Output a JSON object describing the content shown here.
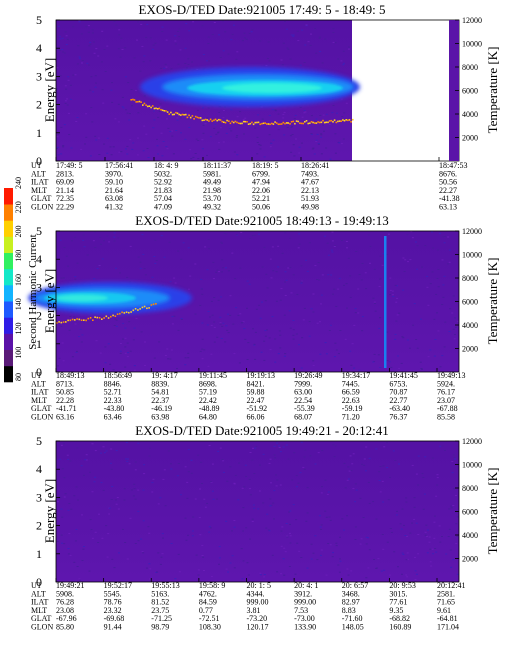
{
  "colorbar": {
    "label": "Second Harmonic Current",
    "ticks": [
      "80",
      "100",
      "120",
      "140",
      "160",
      "180",
      "200",
      "220",
      "240"
    ],
    "colors": [
      "#000000",
      "#5a1a78",
      "#5b12a8",
      "#2f1ce6",
      "#1e5aff",
      "#12b4ff",
      "#14e8c8",
      "#30f060",
      "#c8f020",
      "#ffd000",
      "#ff8000",
      "#ff1a00"
    ]
  },
  "panels": [
    {
      "title": "EXOS-D/TED   Date:921005  17:49: 5 - 18:49: 5",
      "ylabel": "Energy [eV]",
      "y2label": "Temperature [K]",
      "yticks": [
        "0",
        "1",
        "2",
        "3",
        "4",
        "5"
      ],
      "y2ticks": [
        "2000",
        "4000",
        "6000",
        "8000",
        "10000",
        "12000"
      ],
      "row_labels": [
        "UT",
        "ALT",
        "ILAT",
        "MLT",
        "GLAT",
        "GLON"
      ],
      "columns": [
        [
          "17:49: 5",
          "2813.",
          "69.09",
          "21.14",
          "72.35",
          "22.29"
        ],
        [
          "17:56:41",
          "3970.",
          "59.10",
          "21.64",
          "63.08",
          "41.32"
        ],
        [
          "18: 4: 9",
          "5032.",
          "52.92",
          "21.83",
          "57.04",
          "47.09"
        ],
        [
          "18:11:37",
          "5981.",
          "49.49",
          "21.98",
          "53.70",
          "49.32"
        ],
        [
          "18:19: 5",
          "6799.",
          "47.94",
          "22.06",
          "52.21",
          "50.06"
        ],
        [
          "18:26:41",
          "7493.",
          "47.67",
          "22.13",
          "51.93",
          "49.98"
        ],
        [
          "18:47:53",
          "8676.",
          "50.56",
          "22.27",
          "-41.38",
          "63.13"
        ]
      ]
    },
    {
      "title": "EXOS-D/TED   Date:921005  18:49:13 - 19:49:13",
      "ylabel": "Energy [eV]",
      "y2label": "Temperature [K]",
      "yticks": [
        "0",
        "1",
        "2",
        "3",
        "4",
        "5"
      ],
      "y2ticks": [
        "2000",
        "4000",
        "6000",
        "8000",
        "10000",
        "12000"
      ],
      "row_labels": [
        "UT",
        "ALT",
        "ILAT",
        "MLT",
        "GLAT",
        "GLON"
      ],
      "columns": [
        [
          "18:49:13",
          "8713.",
          "50.85",
          "22.28",
          "-41.71",
          "63.16"
        ],
        [
          "18:56:49",
          "8846.",
          "52.71",
          "22.33",
          "-43.80",
          "63.46"
        ],
        [
          "19: 4:17",
          "8839.",
          "54.81",
          "22.37",
          "-46.19",
          "63.98"
        ],
        [
          "19:11:45",
          "8698.",
          "57.19",
          "22.42",
          "-48.89",
          "64.80"
        ],
        [
          "19:19:13",
          "8421.",
          "59.88",
          "22.47",
          "-51.92",
          "66.06"
        ],
        [
          "19:26:49",
          "7999.",
          "63.00",
          "22.54",
          "-55.39",
          "68.07"
        ],
        [
          "19:34:17",
          "7445.",
          "66.59",
          "22.63",
          "-59.19",
          "71.20"
        ],
        [
          "19:41:45",
          "6753.",
          "70.87",
          "22.77",
          "-63.40",
          "76.37"
        ],
        [
          "19:49:13",
          "5924.",
          "76.17",
          "23.07",
          "-67.88",
          "85.58"
        ]
      ]
    },
    {
      "title": "EXOS-D/TED   Date:921005  19:49:21 - 20:12:41",
      "ylabel": "Energy [eV]",
      "y2label": "Temperature [K]",
      "yticks": [
        "0",
        "1",
        "2",
        "3",
        "4",
        "5"
      ],
      "y2ticks": [
        "2000",
        "4000",
        "6000",
        "8000",
        "10000",
        "12000"
      ],
      "row_labels": [
        "UT",
        "ALT",
        "ILAT",
        "MLT",
        "GLAT",
        "GLON"
      ],
      "columns": [
        [
          "19:49:21",
          "5908.",
          "76.28",
          "23.08",
          "-67.96",
          "85.80"
        ],
        [
          "19:52:17",
          "5545.",
          "78.76",
          "23.32",
          "-69.68",
          "91.44"
        ],
        [
          "19:55:13",
          "5163.",
          "81.52",
          "23.75",
          "-71.25",
          "98.79"
        ],
        [
          "19:58: 9",
          "4762.",
          "84.59",
          "0.77",
          "-72.51",
          "108.30"
        ],
        [
          "20: 1: 5",
          "4344.",
          "999.00",
          "3.81",
          "-73.20",
          "120.17"
        ],
        [
          "20: 4: 1",
          "3912.",
          "999.00",
          "7.53",
          "-73.00",
          "133.90"
        ],
        [
          "20: 6:57",
          "3468.",
          "82.97",
          "8.83",
          "-71.60",
          "148.05"
        ],
        [
          "20: 9:53",
          "3015.",
          "77.61",
          "9.35",
          "-68.82",
          "160.89"
        ],
        [
          "20:12:41",
          "2581.",
          "71.65",
          "9.61",
          "-64.81",
          "171.04"
        ]
      ]
    }
  ],
  "chart_data": [
    {
      "type": "heatmap",
      "title": "EXOS-D/TED   Date:921005  17:49: 5 - 18:49: 5",
      "xlabel": "UT",
      "ylabel": "Energy [eV]",
      "y2label": "Temperature [K]",
      "ylim": [
        0,
        5
      ],
      "y2lim": [
        0,
        12000
      ],
      "x_ticks": [
        "17:49: 5",
        "17:56:41",
        "18: 4: 9",
        "18:11:37",
        "18:19: 5",
        "18:26:41",
        "18:47:53"
      ],
      "data_end": "18:34:00",
      "band_center_eV": [
        null,
        null,
        null,
        2.78,
        2.62,
        2.58,
        2.58,
        2.58,
        2.58
      ],
      "band_halfwidth_eV": [
        null,
        null,
        null,
        0.55,
        0.5,
        0.45,
        0.42,
        0.42,
        0.4
      ],
      "temperature_K": [
        null,
        null,
        5300,
        4200,
        3600,
        3300,
        3300,
        3400,
        3500
      ],
      "colorbar_range": [
        80,
        240
      ],
      "colorbar_label": "Second Harmonic Current"
    },
    {
      "type": "heatmap",
      "title": "EXOS-D/TED   Date:921005  18:49:13 - 19:49:13",
      "xlabel": "UT",
      "ylabel": "Energy [eV]",
      "y2label": "Temperature [K]",
      "ylim": [
        0,
        5
      ],
      "y2lim": [
        0,
        12000
      ],
      "x_ticks": [
        "18:49:13",
        "18:56:49",
        "19: 4:17",
        "19:11:45",
        "19:19:13",
        "19:26:49",
        "19:34:17",
        "19:41:45",
        "19:49:13"
      ],
      "band_center_eV": [
        2.5,
        2.6,
        2.7,
        null,
        null,
        null,
        null,
        null,
        null
      ],
      "band_halfwidth_eV": [
        0.35,
        0.35,
        0.25,
        null,
        null,
        null,
        null,
        null,
        null
      ],
      "temperature_K": [
        4300,
        4700,
        5800,
        null,
        null,
        null,
        null,
        null,
        null
      ],
      "spike_time": "19:36:30",
      "colorbar_range": [
        80,
        240
      ],
      "colorbar_label": "Second Harmonic Current"
    },
    {
      "type": "heatmap",
      "title": "EXOS-D/TED   Date:921005  19:49:21 - 20:12:41",
      "xlabel": "UT",
      "ylabel": "Energy [eV]",
      "y2label": "Temperature [K]",
      "ylim": [
        0,
        5
      ],
      "y2lim": [
        0,
        12000
      ],
      "x_ticks": [
        "19:49:21",
        "19:52:17",
        "19:55:13",
        "19:58: 9",
        "20: 1: 5",
        "20: 4: 1",
        "20: 6:57",
        "20: 9:53",
        "20:12:41"
      ],
      "band_center_eV": [],
      "temperature_K": [],
      "colorbar_range": [
        80,
        240
      ],
      "colorbar_label": "Second Harmonic Current"
    }
  ]
}
